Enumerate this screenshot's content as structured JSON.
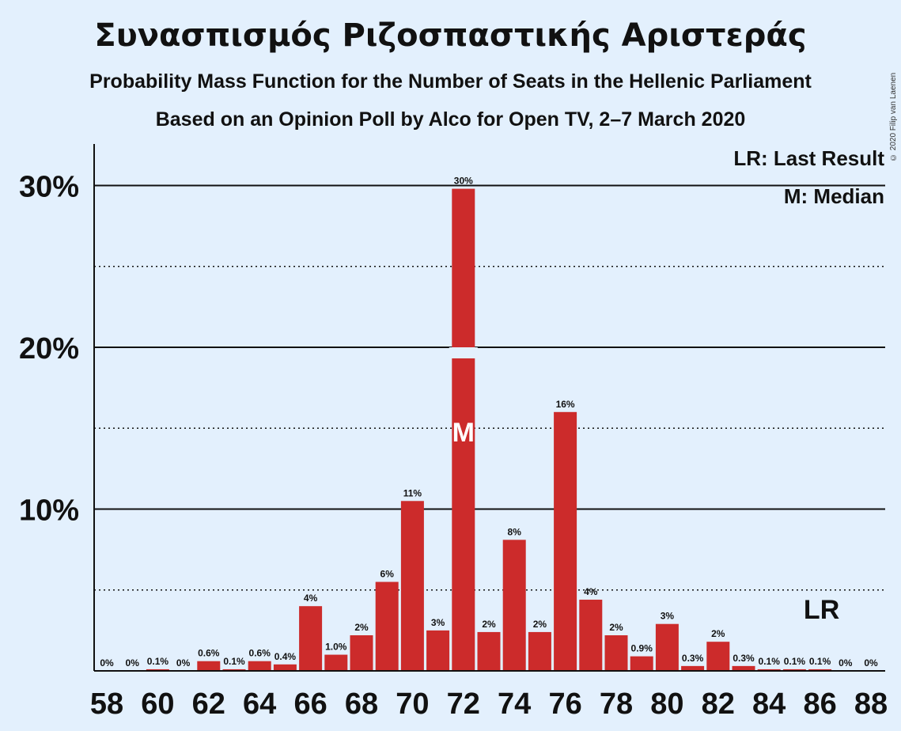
{
  "title": "Συνασπισμός Ριζοσπαστικής Αριστεράς",
  "subtitle1": "Probability Mass Function for the Number of Seats in the Hellenic Parliament",
  "subtitle2": "Based on an Opinion Poll by Alco for Open TV, 2–7 March 2020",
  "copyright": "© 2020 Filip van Laenen",
  "legend": {
    "last_result": "LR: Last Result",
    "median": "M: Median"
  },
  "colors": {
    "background": "#e3f0fd",
    "bar": "#cc2b2b",
    "text": "#111111"
  },
  "chart_data": {
    "type": "bar",
    "title": "Συνασπισμός Ριζοσπαστικής Αριστεράς",
    "xlabel": "",
    "ylabel": "",
    "ylim": [
      0,
      32.5
    ],
    "yticks": [
      10,
      20,
      30
    ],
    "ytick_labels": [
      "10%",
      "20%",
      "30%"
    ],
    "minor_gridlines": [
      5,
      15,
      25
    ],
    "x_tick_labels": [
      58,
      60,
      62,
      64,
      66,
      68,
      70,
      72,
      74,
      76,
      78,
      80,
      82,
      84,
      86,
      88
    ],
    "categories": [
      58,
      59,
      60,
      61,
      62,
      63,
      64,
      65,
      66,
      67,
      68,
      69,
      70,
      71,
      72,
      73,
      74,
      75,
      76,
      77,
      78,
      79,
      80,
      81,
      82,
      83,
      84,
      85,
      86,
      87,
      88
    ],
    "values": [
      0,
      0,
      0.1,
      0,
      0.6,
      0.1,
      0.6,
      0.4,
      4.0,
      1.0,
      2.2,
      5.5,
      10.5,
      2.5,
      29.8,
      2.4,
      8.1,
      2.4,
      16.0,
      4.4,
      2.2,
      0.9,
      2.9,
      0.3,
      1.8,
      0.3,
      0.1,
      0.1,
      0.1,
      0,
      0
    ],
    "labels": [
      "0%",
      "0%",
      "0.1%",
      "0%",
      "0.6%",
      "0.1%",
      "0.6%",
      "0.4%",
      "4%",
      "1.0%",
      "2%",
      "6%",
      "11%",
      "3%",
      "30%",
      "2%",
      "8%",
      "2%",
      "16%",
      "4%",
      "2%",
      "0.9%",
      "3%",
      "0.3%",
      "2%",
      "0.3%",
      "0.1%",
      "0.1%",
      "0.1%",
      "0%",
      "0%"
    ],
    "median": 72,
    "median_marker": "M",
    "last_result": 86,
    "last_result_marker": "LR",
    "grid": true,
    "legend_position": "top-right"
  }
}
